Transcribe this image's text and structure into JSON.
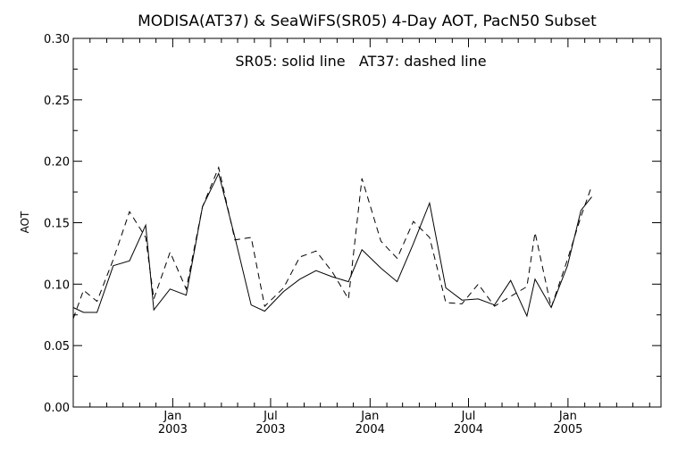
{
  "chart_data": {
    "type": "line",
    "title": "MODISA(AT37) & SeaWiFS(SR05) 4-Day AOT, PacN50 Subset",
    "annotation": "SR05: solid line   AT37: dashed line",
    "ylabel": "AOT",
    "xlabel": "",
    "ylim": [
      0.0,
      0.3
    ],
    "yticks": [
      "0.00",
      "0.05",
      "0.10",
      "0.15",
      "0.20",
      "0.25",
      "0.30"
    ],
    "xlim": [
      "2002-07-01",
      "2005-06-22"
    ],
    "xticks": [
      {
        "date": "2003-01-01",
        "line1": "Jan",
        "line2": "2003"
      },
      {
        "date": "2003-07-01",
        "line1": "Jul",
        "line2": "2003"
      },
      {
        "date": "2004-01-01",
        "line1": "Jan",
        "line2": "2004"
      },
      {
        "date": "2004-07-01",
        "line1": "Jul",
        "line2": "2004"
      },
      {
        "date": "2005-01-01",
        "line1": "Jan",
        "line2": "2005"
      }
    ],
    "minor_ticks": [
      "2002-08-01",
      "2002-09-01",
      "2002-10-01",
      "2002-11-01",
      "2002-12-01",
      "2003-02-01",
      "2003-03-01",
      "2003-04-01",
      "2003-05-01",
      "2003-06-01",
      "2003-08-01",
      "2003-09-01",
      "2003-10-01",
      "2003-11-01",
      "2003-12-01",
      "2004-02-01",
      "2004-03-01",
      "2004-04-01",
      "2004-05-01",
      "2004-06-01",
      "2004-08-01",
      "2004-09-01",
      "2004-10-01",
      "2004-11-01",
      "2004-12-01",
      "2005-02-01",
      "2005-03-01",
      "2005-04-01",
      "2005-05-01",
      "2005-06-01"
    ],
    "series": [
      {
        "name": "SR05",
        "style": "solid",
        "color": "#000000",
        "points": [
          [
            "2002-07-01",
            0.081
          ],
          [
            "2002-07-20",
            0.077
          ],
          [
            "2002-08-14",
            0.077
          ],
          [
            "2002-09-13",
            0.115
          ],
          [
            "2002-10-13",
            0.119
          ],
          [
            "2002-11-12",
            0.148
          ],
          [
            "2002-11-27",
            0.079
          ],
          [
            "2002-12-27",
            0.096
          ],
          [
            "2003-01-26",
            0.091
          ],
          [
            "2003-02-25",
            0.163
          ],
          [
            "2003-03-27",
            0.19
          ],
          [
            "2003-04-26",
            0.138
          ],
          [
            "2003-05-26",
            0.083
          ],
          [
            "2003-06-20",
            0.078
          ],
          [
            "2003-07-25",
            0.094
          ],
          [
            "2003-08-24",
            0.104
          ],
          [
            "2003-09-23",
            0.111
          ],
          [
            "2003-10-23",
            0.106
          ],
          [
            "2003-11-22",
            0.102
          ],
          [
            "2003-12-17",
            0.128
          ],
          [
            "2004-01-21",
            0.113
          ],
          [
            "2004-02-20",
            0.102
          ],
          [
            "2004-03-21",
            0.133
          ],
          [
            "2004-04-20",
            0.166
          ],
          [
            "2004-05-20",
            0.097
          ],
          [
            "2004-06-19",
            0.087
          ],
          [
            "2004-07-19",
            0.088
          ],
          [
            "2004-08-18",
            0.083
          ],
          [
            "2004-09-17",
            0.103
          ],
          [
            "2004-10-17",
            0.074
          ],
          [
            "2004-11-01",
            0.104
          ],
          [
            "2004-12-01",
            0.081
          ],
          [
            "2004-12-31",
            0.115
          ],
          [
            "2005-01-25",
            0.16
          ],
          [
            "2005-02-14",
            0.171
          ]
        ]
      },
      {
        "name": "AT37",
        "style": "dashed",
        "color": "#000000",
        "points": [
          [
            "2002-07-01",
            0.072
          ],
          [
            "2002-07-20",
            0.095
          ],
          [
            "2002-08-14",
            0.086
          ],
          [
            "2002-09-13",
            0.12
          ],
          [
            "2002-10-13",
            0.159
          ],
          [
            "2002-11-12",
            0.138
          ],
          [
            "2002-11-27",
            0.088
          ],
          [
            "2002-12-27",
            0.126
          ],
          [
            "2003-01-26",
            0.096
          ],
          [
            "2003-02-25",
            0.163
          ],
          [
            "2003-03-27",
            0.195
          ],
          [
            "2003-04-26",
            0.136
          ],
          [
            "2003-05-26",
            0.138
          ],
          [
            "2003-06-20",
            0.082
          ],
          [
            "2003-07-25",
            0.097
          ],
          [
            "2003-08-24",
            0.122
          ],
          [
            "2003-09-23",
            0.127
          ],
          [
            "2003-10-23",
            0.11
          ],
          [
            "2003-11-22",
            0.088
          ],
          [
            "2003-12-17",
            0.186
          ],
          [
            "2004-01-21",
            0.135
          ],
          [
            "2004-02-20",
            0.121
          ],
          [
            "2004-03-21",
            0.151
          ],
          [
            "2004-04-20",
            0.138
          ],
          [
            "2004-05-20",
            0.085
          ],
          [
            "2004-06-19",
            0.084
          ],
          [
            "2004-07-19",
            0.1
          ],
          [
            "2004-08-18",
            0.082
          ],
          [
            "2004-09-17",
            0.09
          ],
          [
            "2004-10-17",
            0.098
          ],
          [
            "2004-11-01",
            0.142
          ],
          [
            "2004-12-01",
            0.081
          ],
          [
            "2004-12-31",
            0.12
          ],
          [
            "2005-01-25",
            0.155
          ],
          [
            "2005-02-14",
            0.18
          ]
        ]
      }
    ],
    "grid": false,
    "legend": "none"
  }
}
